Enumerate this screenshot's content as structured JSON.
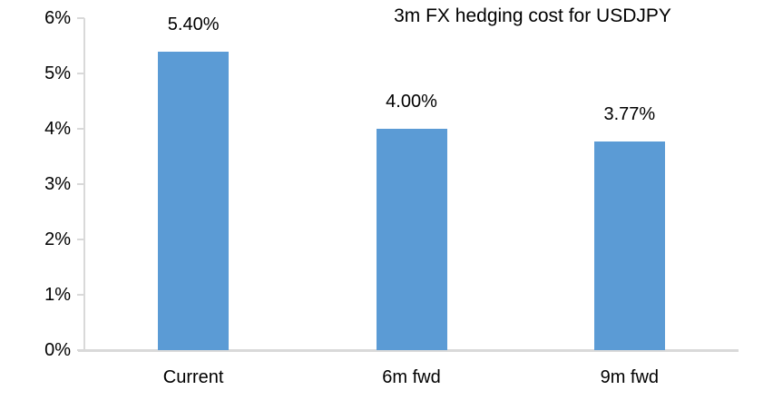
{
  "chart_data": {
    "type": "bar",
    "title": "3m FX hedging cost for USDJPY",
    "categories": [
      "Current",
      "6m fwd",
      "9m fwd"
    ],
    "values": [
      5.4,
      4.0,
      3.77
    ],
    "data_labels": [
      "5.40%",
      "4.00%",
      "3.77%"
    ],
    "xlabel": "",
    "ylabel": "",
    "ylim": [
      0,
      6
    ],
    "y_tick_step": 1,
    "y_tick_labels": [
      "0%",
      "1%",
      "2%",
      "3%",
      "4%",
      "5%",
      "6%"
    ],
    "grid": false,
    "legend_position": "none",
    "colors": {
      "bar": "#5B9BD5",
      "axis": "#D9D9D9",
      "text": "#000000",
      "background": "#FFFFFF"
    }
  }
}
